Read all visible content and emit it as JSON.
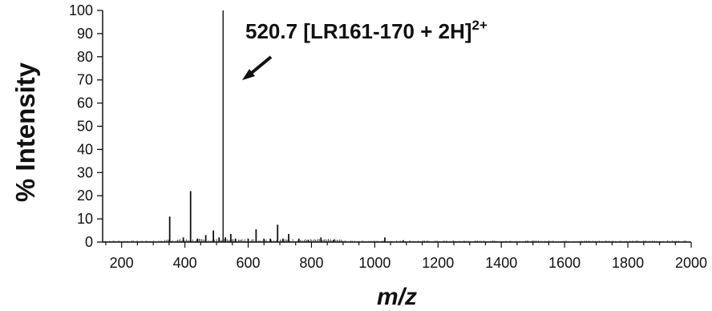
{
  "chart_data": {
    "type": "line",
    "title": "",
    "xlabel": "m/z",
    "ylabel": "% Intensity",
    "xlim": [
      140,
      2000
    ],
    "ylim": [
      0,
      100
    ],
    "x_ticks": [
      200,
      400,
      600,
      800,
      1000,
      1200,
      1400,
      1600,
      1800,
      2000
    ],
    "y_ticks": [
      0,
      10,
      20,
      30,
      40,
      50,
      60,
      70,
      80,
      90,
      100
    ],
    "grid": false,
    "series": [
      {
        "style": "stick",
        "color": "#111111",
        "peaks": [
          {
            "x": 352,
            "y": 11
          },
          {
            "x": 395,
            "y": 2
          },
          {
            "x": 418,
            "y": 22
          },
          {
            "x": 440,
            "y": 1.5
          },
          {
            "x": 466,
            "y": 3
          },
          {
            "x": 490,
            "y": 5
          },
          {
            "x": 508,
            "y": 2
          },
          {
            "x": 520.7,
            "y": 100
          },
          {
            "x": 528,
            "y": 2
          },
          {
            "x": 545,
            "y": 3.5
          },
          {
            "x": 560,
            "y": 1.5
          },
          {
            "x": 600,
            "y": 1.5
          },
          {
            "x": 625,
            "y": 5.5
          },
          {
            "x": 650,
            "y": 1.5
          },
          {
            "x": 670,
            "y": 1.5
          },
          {
            "x": 693,
            "y": 7.5
          },
          {
            "x": 710,
            "y": 1.5
          },
          {
            "x": 728,
            "y": 3.5
          },
          {
            "x": 760,
            "y": 1.5
          },
          {
            "x": 790,
            "y": 1
          },
          {
            "x": 830,
            "y": 2
          },
          {
            "x": 870,
            "y": 1
          },
          {
            "x": 1032,
            "y": 2
          },
          {
            "x": 1090,
            "y": 0.8
          }
        ]
      }
    ],
    "annotations": [
      {
        "label": "520.7 [LR161-170 + 2H]",
        "superscript": "2+",
        "points_to_x": 520.7
      }
    ]
  }
}
